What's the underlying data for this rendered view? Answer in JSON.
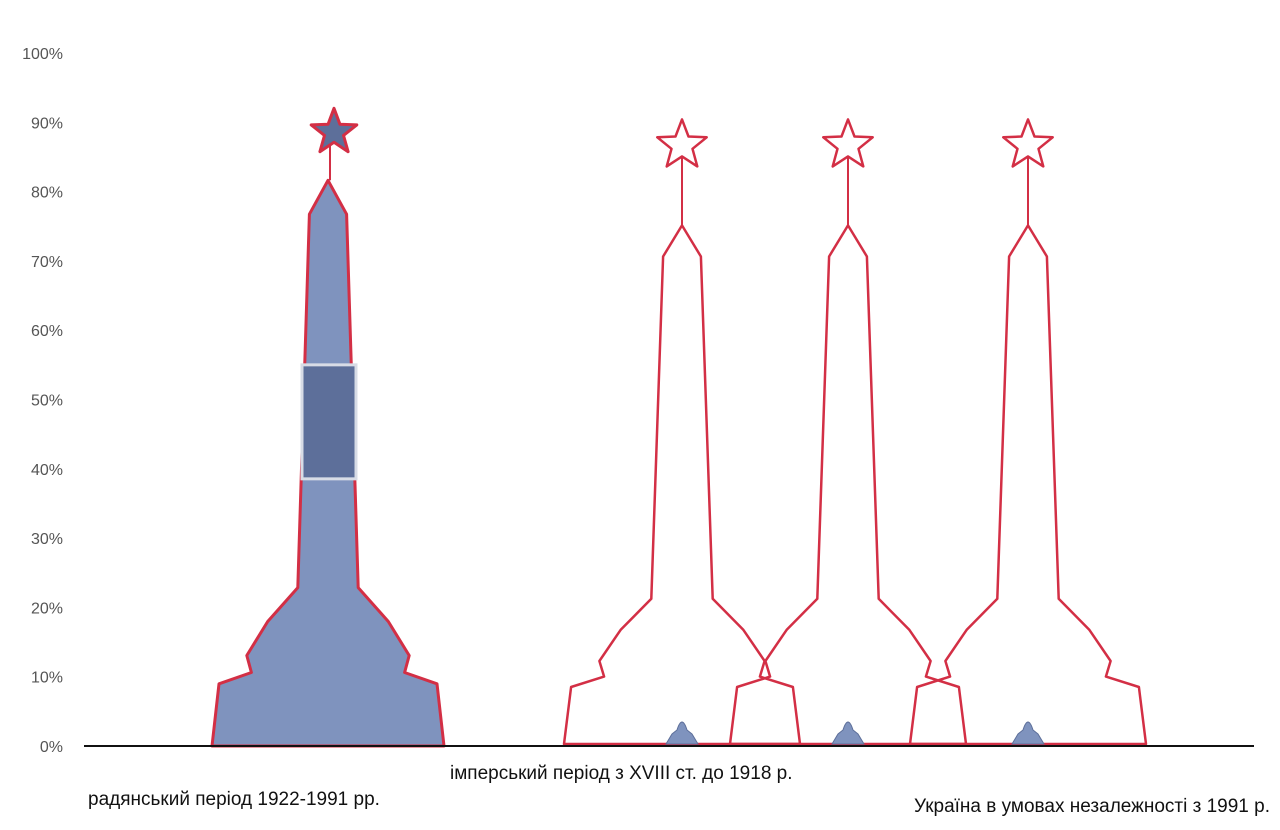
{
  "chart_data": {
    "type": "bar",
    "style": "obelisk-shaped bars (pictogram)",
    "categories": [
      "радянський період 1922-1991 рр.",
      "імперський період з XVIII ст. до 1918 р.",
      "Україна в умовах незалежності з 1991 р."
    ],
    "series": [
      {
        "values": [
          90,
          0,
          0
        ]
      }
    ],
    "outline_only_bars": 3,
    "outline_only_max": 91,
    "y_ticks": [
      "0%",
      "10%",
      "20%",
      "30%",
      "40%",
      "50%",
      "60%",
      "70%",
      "80%",
      "90%",
      "100%"
    ],
    "ylim": [
      0,
      100
    ],
    "grid": false,
    "legend": "none",
    "colors": {
      "outline": "#d32f45",
      "fill": "#7f93be",
      "fill_dark": "#5d6f9a",
      "axis": "#111111",
      "tick_text": "#555555"
    },
    "icons": [
      "obelisk-icon",
      "star-icon",
      "plaque-icon",
      "small-monument-icon"
    ]
  }
}
